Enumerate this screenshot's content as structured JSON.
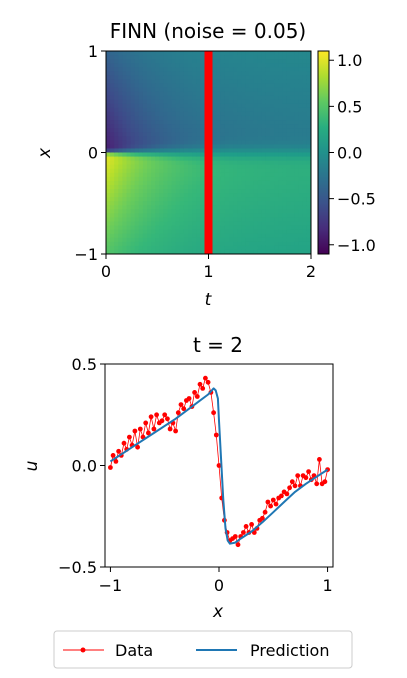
{
  "chart_data": [
    {
      "type": "heatmap",
      "title": "FINN (noise = 0.05)",
      "xlabel": "t",
      "ylabel": "x",
      "xlim": [
        0,
        2
      ],
      "ylim": [
        -1,
        1
      ],
      "xticks": [
        "0",
        "1",
        "2"
      ],
      "yticks": [
        "−1",
        "0",
        "1"
      ],
      "colormap": "viridis",
      "colorbar": {
        "vmin": -1.1,
        "vmax": 1.1,
        "ticks": [
          "−1.0",
          "−0.5",
          "0.0",
          "0.5",
          "1.0"
        ],
        "tick_values": [
          -1.0,
          -0.5,
          0.0,
          0.5,
          1.0
        ]
      },
      "highlight": {
        "t": 1.0,
        "color": "#ff0000"
      }
    },
    {
      "type": "line",
      "title": "t = 2",
      "xlabel": "x",
      "ylabel": "u",
      "xlim": [
        -1.05,
        1.05
      ],
      "ylim": [
        -0.5,
        0.5
      ],
      "xticks": [
        "−1",
        "0",
        "1"
      ],
      "xtick_values": [
        -1,
        0,
        1
      ],
      "yticks": [
        "−0.5",
        "0.0",
        "0.5"
      ],
      "ytick_values": [
        -0.5,
        0.0,
        0.5
      ],
      "legend": {
        "placement": "below",
        "entries": [
          "Data",
          "Prediction"
        ]
      },
      "series": [
        {
          "name": "Data",
          "color": "#ff0000",
          "style": "dots-thin-line",
          "x": [
            -1.0,
            -0.975,
            -0.95,
            -0.925,
            -0.9,
            -0.875,
            -0.85,
            -0.825,
            -0.8,
            -0.775,
            -0.75,
            -0.725,
            -0.7,
            -0.675,
            -0.65,
            -0.625,
            -0.6,
            -0.575,
            -0.55,
            -0.525,
            -0.5,
            -0.475,
            -0.45,
            -0.425,
            -0.4,
            -0.375,
            -0.35,
            -0.325,
            -0.3,
            -0.275,
            -0.25,
            -0.225,
            -0.2,
            -0.175,
            -0.15,
            -0.125,
            -0.1,
            -0.075,
            -0.05,
            -0.025,
            0.0,
            0.025,
            0.05,
            0.075,
            0.1,
            0.125,
            0.15,
            0.175,
            0.2,
            0.225,
            0.25,
            0.275,
            0.3,
            0.325,
            0.35,
            0.375,
            0.4,
            0.425,
            0.45,
            0.475,
            0.5,
            0.525,
            0.55,
            0.575,
            0.6,
            0.625,
            0.65,
            0.675,
            0.7,
            0.725,
            0.75,
            0.775,
            0.8,
            0.825,
            0.85,
            0.875,
            0.9,
            0.925,
            0.95,
            0.975,
            1.0
          ],
          "y": [
            -0.01,
            0.05,
            0.02,
            0.07,
            0.05,
            0.11,
            0.08,
            0.14,
            0.1,
            0.17,
            0.09,
            0.18,
            0.14,
            0.21,
            0.16,
            0.24,
            0.18,
            0.25,
            0.21,
            0.22,
            0.25,
            0.23,
            0.18,
            0.21,
            0.17,
            0.26,
            0.3,
            0.28,
            0.32,
            0.33,
            0.29,
            0.36,
            0.34,
            0.4,
            0.38,
            0.43,
            0.41,
            0.36,
            0.26,
            0.15,
            0.0,
            -0.16,
            -0.27,
            -0.33,
            -0.37,
            -0.36,
            -0.35,
            -0.39,
            -0.35,
            -0.33,
            -0.3,
            -0.33,
            -0.29,
            -0.33,
            -0.31,
            -0.27,
            -0.26,
            -0.23,
            -0.18,
            -0.2,
            -0.17,
            -0.19,
            -0.16,
            -0.15,
            -0.13,
            -0.14,
            -0.11,
            -0.08,
            -0.1,
            -0.05,
            -0.1,
            -0.05,
            -0.06,
            -0.03,
            -0.07,
            -0.05,
            -0.09,
            0.03,
            -0.09,
            -0.08,
            -0.02
          ]
        },
        {
          "name": "Prediction",
          "color": "#1f77b4",
          "style": "line",
          "x": [
            -1.0,
            -0.8,
            -0.6,
            -0.4,
            -0.2,
            -0.1,
            -0.05,
            -0.03,
            -0.01,
            0.0,
            0.02,
            0.04,
            0.06,
            0.08,
            0.1,
            0.15,
            0.2,
            0.3,
            0.4,
            0.5,
            0.6,
            0.7,
            0.8,
            0.9,
            1.0
          ],
          "y": [
            0.02,
            0.09,
            0.16,
            0.23,
            0.31,
            0.35,
            0.38,
            0.37,
            0.33,
            0.22,
            0.02,
            -0.17,
            -0.31,
            -0.37,
            -0.385,
            -0.38,
            -0.36,
            -0.325,
            -0.28,
            -0.23,
            -0.18,
            -0.13,
            -0.09,
            -0.055,
            -0.02
          ]
        }
      ]
    }
  ]
}
